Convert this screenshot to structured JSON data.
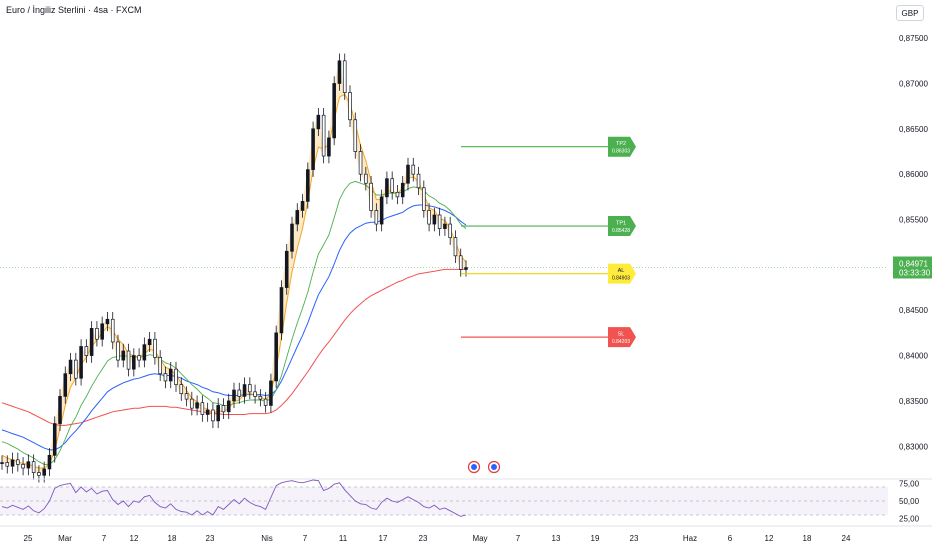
{
  "header": {
    "title": "Euro / İngiliz Sterlini · 4sa · FXCM",
    "currency": "GBP"
  },
  "price_axis": {
    "ticks": [
      "0,87500",
      "0,87000",
      "0,86500",
      "0,86000",
      "0,85500",
      "0,85000",
      "0,84500",
      "0,84000",
      "0,83500",
      "0,83000"
    ],
    "current_price": "0,84971",
    "countdown": "03:33:30"
  },
  "rsi_axis": {
    "ticks": [
      "75,00",
      "50,00",
      "25,00"
    ]
  },
  "time_axis": {
    "labels": [
      "25",
      "Mar",
      "7",
      "12",
      "18",
      "23",
      "Nis",
      "7",
      "11",
      "17",
      "23",
      "May",
      "7",
      "13",
      "19",
      "23",
      "Haz",
      "6",
      "12",
      "18",
      "24"
    ]
  },
  "levels": [
    {
      "name": "TP2",
      "value": "0.86303",
      "color": "#4caf50"
    },
    {
      "name": "TP1",
      "value": "0.85428",
      "color": "#4caf50"
    },
    {
      "name": "AL",
      "value": "0.84903",
      "color": "#ffeb3b"
    },
    {
      "name": "SL",
      "value": "0.84203",
      "color": "#f05350"
    }
  ],
  "colors": {
    "up_candle": "#131722",
    "down_candle": "#ffffff",
    "ma_short": "#f5a623",
    "ma_mid": "#4caf50",
    "ma_long": "#2962ff",
    "ma_slow": "#f05350",
    "rsi": "#7e57c2",
    "price_label": "#4caf50"
  },
  "chart_data": {
    "type": "line",
    "title": "Euro / İngiliz Sterlini · 4sa · FXCM",
    "ylim": [
      0.8265,
      0.877
    ],
    "rsi_ylim": [
      20,
      80
    ],
    "close": [
      0.8282,
      0.8278,
      0.8285,
      0.828,
      0.8276,
      0.8283,
      0.8271,
      0.8268,
      0.8275,
      0.829,
      0.8325,
      0.8355,
      0.838,
      0.8395,
      0.8375,
      0.841,
      0.84,
      0.843,
      0.8418,
      0.8435,
      0.844,
      0.8415,
      0.8395,
      0.8405,
      0.8385,
      0.84,
      0.8395,
      0.8412,
      0.8418,
      0.8398,
      0.838,
      0.8372,
      0.8385,
      0.8368,
      0.8358,
      0.8352,
      0.8342,
      0.8348,
      0.8335,
      0.834,
      0.8328,
      0.8345,
      0.8338,
      0.835,
      0.8362,
      0.8355,
      0.8368,
      0.836,
      0.8355,
      0.8352,
      0.8345,
      0.8372,
      0.8425,
      0.8475,
      0.8515,
      0.8545,
      0.856,
      0.857,
      0.8605,
      0.865,
      0.8665,
      0.862,
      0.864,
      0.87,
      0.8725,
      0.869,
      0.866,
      0.8625,
      0.86,
      0.859,
      0.856,
      0.8545,
      0.8575,
      0.8595,
      0.858,
      0.8575,
      0.859,
      0.861,
      0.86,
      0.8585,
      0.856,
      0.8545,
      0.8555,
      0.854,
      0.8545,
      0.853,
      0.851,
      0.8495,
      0.8497
    ],
    "ma_short": [
      0.829,
      0.8287,
      0.8285,
      0.8283,
      0.8281,
      0.828,
      0.8278,
      0.8276,
      0.8276,
      0.828,
      0.8295,
      0.832,
      0.8345,
      0.8365,
      0.8375,
      0.839,
      0.8398,
      0.841,
      0.8417,
      0.8425,
      0.8432,
      0.8428,
      0.8418,
      0.8412,
      0.8402,
      0.84,
      0.8398,
      0.8402,
      0.8407,
      0.8405,
      0.8396,
      0.8387,
      0.8385,
      0.8378,
      0.837,
      0.8362,
      0.8353,
      0.8349,
      0.8343,
      0.8341,
      0.8336,
      0.8339,
      0.8338,
      0.8342,
      0.8349,
      0.8351,
      0.8357,
      0.8358,
      0.8357,
      0.8355,
      0.8351,
      0.8358,
      0.8385,
      0.842,
      0.8458,
      0.8492,
      0.8518,
      0.854,
      0.857,
      0.8605,
      0.863,
      0.8628,
      0.8633,
      0.866,
      0.8685,
      0.8688,
      0.8678,
      0.8656,
      0.8632,
      0.8615,
      0.8592,
      0.8572,
      0.8572,
      0.8582,
      0.8581,
      0.8579,
      0.8584,
      0.8595,
      0.8597,
      0.8592,
      0.8578,
      0.8563,
      0.856,
      0.8551,
      0.8549,
      0.854,
      0.8525,
      0.851,
      0.8503
    ],
    "ma_mid": [
      0.8305,
      0.8303,
      0.83,
      0.8297,
      0.8293,
      0.829,
      0.8287,
      0.8283,
      0.828,
      0.828,
      0.8285,
      0.8295,
      0.8308,
      0.8322,
      0.8332,
      0.8345,
      0.8355,
      0.8366,
      0.8376,
      0.8385,
      0.8394,
      0.8398,
      0.8399,
      0.84,
      0.8399,
      0.8399,
      0.8398,
      0.8399,
      0.8401,
      0.84,
      0.8396,
      0.8392,
      0.839,
      0.8386,
      0.838,
      0.8374,
      0.8368,
      0.8363,
      0.8357,
      0.8353,
      0.8348,
      0.8347,
      0.8345,
      0.8345,
      0.8347,
      0.8348,
      0.835,
      0.8351,
      0.8351,
      0.8351,
      0.835,
      0.8352,
      0.8362,
      0.8378,
      0.8398,
      0.8418,
      0.8436,
      0.8452,
      0.847,
      0.8492,
      0.8512,
      0.8522,
      0.8533,
      0.8552,
      0.8572,
      0.8583,
      0.859,
      0.8592,
      0.859,
      0.8588,
      0.8583,
      0.8577,
      0.8577,
      0.8579,
      0.8579,
      0.8579,
      0.858,
      0.8584,
      0.8586,
      0.8585,
      0.8582,
      0.8576,
      0.8573,
      0.8568,
      0.8565,
      0.856,
      0.8553,
      0.8545,
      0.854
    ],
    "ma_long": [
      0.8318,
      0.8316,
      0.8314,
      0.8312,
      0.831,
      0.8307,
      0.8304,
      0.8301,
      0.8298,
      0.8296,
      0.8296,
      0.8299,
      0.8304,
      0.8311,
      0.8317,
      0.8324,
      0.8331,
      0.8339,
      0.8346,
      0.8353,
      0.836,
      0.8364,
      0.8367,
      0.837,
      0.8372,
      0.8374,
      0.8375,
      0.8377,
      0.8379,
      0.838,
      0.8379,
      0.8378,
      0.8378,
      0.8377,
      0.8375,
      0.8372,
      0.837,
      0.8368,
      0.8365,
      0.8363,
      0.836,
      0.8359,
      0.8357,
      0.8356,
      0.8356,
      0.8356,
      0.8357,
      0.8357,
      0.8357,
      0.8357,
      0.8356,
      0.8357,
      0.8362,
      0.8372,
      0.8384,
      0.8397,
      0.841,
      0.8422,
      0.8436,
      0.8452,
      0.8467,
      0.8477,
      0.8487,
      0.8501,
      0.8516,
      0.8527,
      0.8535,
      0.854,
      0.8543,
      0.8546,
      0.8547,
      0.8547,
      0.8549,
      0.8552,
      0.8554,
      0.8556,
      0.8558,
      0.8562,
      0.8565,
      0.8566,
      0.8566,
      0.8565,
      0.8564,
      0.8562,
      0.856,
      0.8557,
      0.8553,
      0.8548,
      0.8544
    ],
    "ma_slow": [
      0.8348,
      0.8346,
      0.8344,
      0.8342,
      0.834,
      0.8338,
      0.8335,
      0.8332,
      0.8329,
      0.8326,
      0.8324,
      0.8323,
      0.8323,
      0.8324,
      0.8325,
      0.8326,
      0.8328,
      0.833,
      0.8332,
      0.8334,
      0.8336,
      0.8338,
      0.8339,
      0.834,
      0.8341,
      0.8342,
      0.8342,
      0.8343,
      0.8344,
      0.8344,
      0.8344,
      0.8344,
      0.8343,
      0.8343,
      0.8342,
      0.8341,
      0.834,
      0.8339,
      0.8338,
      0.8337,
      0.8336,
      0.8336,
      0.8335,
      0.8335,
      0.8335,
      0.8335,
      0.8335,
      0.8336,
      0.8336,
      0.8336,
      0.8336,
      0.8337,
      0.834,
      0.8345,
      0.8351,
      0.8358,
      0.8366,
      0.8374,
      0.8382,
      0.8391,
      0.84,
      0.8408,
      0.8415,
      0.8423,
      0.8431,
      0.8439,
      0.8446,
      0.8452,
      0.8457,
      0.8462,
      0.8466,
      0.8469,
      0.8472,
      0.8475,
      0.8478,
      0.8481,
      0.8483,
      0.8486,
      0.8488,
      0.849,
      0.8491,
      0.8492,
      0.8493,
      0.8494,
      0.8495,
      0.8495,
      0.8495,
      0.8495,
      0.8495
    ],
    "rsi": [
      42,
      40,
      44,
      41,
      38,
      43,
      36,
      33,
      39,
      50,
      68,
      72,
      74,
      75,
      62,
      70,
      63,
      68,
      60,
      64,
      65,
      52,
      45,
      50,
      42,
      50,
      48,
      56,
      58,
      48,
      42,
      40,
      46,
      38,
      35,
      34,
      30,
      36,
      30,
      35,
      30,
      42,
      38,
      45,
      52,
      46,
      54,
      48,
      44,
      42,
      38,
      55,
      72,
      76,
      78,
      79,
      77,
      76,
      78,
      80,
      79,
      65,
      68,
      74,
      76,
      66,
      58,
      50,
      46,
      45,
      40,
      38,
      48,
      54,
      50,
      48,
      52,
      56,
      52,
      48,
      42,
      40,
      44,
      38,
      40,
      36,
      32,
      28,
      30
    ]
  }
}
